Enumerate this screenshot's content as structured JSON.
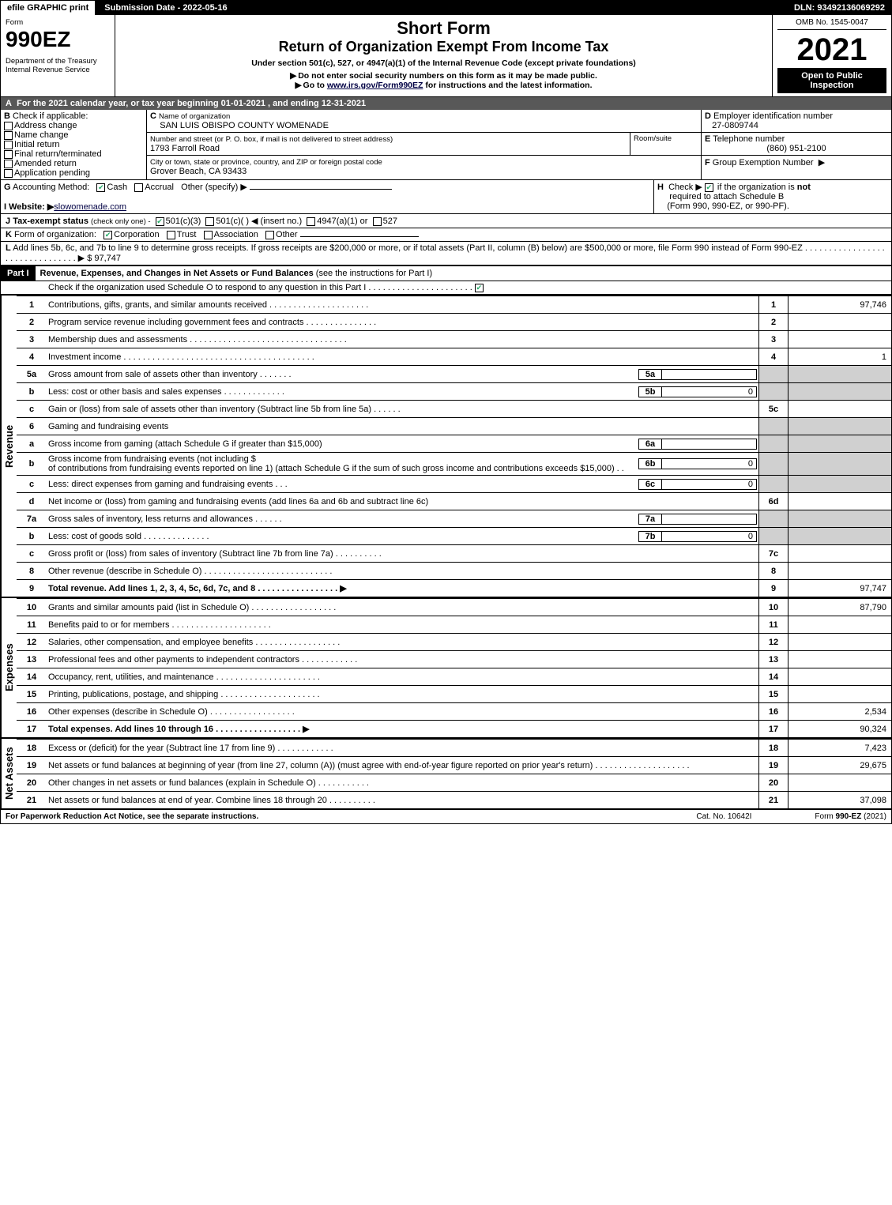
{
  "topbar": {
    "efile": "efile GRAPHIC print",
    "subdate": "Submission Date - 2022-05-16",
    "dln": "DLN: 93492136069292"
  },
  "header": {
    "form_label": "Form",
    "form_number": "990EZ",
    "dept": "Department of the Treasury",
    "irs": "Internal Revenue Service",
    "short": "Short Form",
    "title": "Return of Organization Exempt From Income Tax",
    "under": "Under section 501(c), 527, or 4947(a)(1) of the Internal Revenue Code (except private foundations)",
    "note1": "Do not enter social security numbers on this form as it may be made public.",
    "note2_a": "Go to ",
    "note2_link": "www.irs.gov/Form990EZ",
    "note2_b": " for instructions and the latest information.",
    "omb": "OMB No. 1545-0047",
    "year": "2021",
    "open": "Open to Public Inspection"
  },
  "A": "For the 2021 calendar year, or tax year beginning 01-01-2021 , and ending 12-31-2021",
  "B": {
    "title": "Check if applicable:",
    "opts": [
      "Address change",
      "Name change",
      "Initial return",
      "Final return/terminated",
      "Amended return",
      "Application pending"
    ]
  },
  "C": {
    "label": "Name of organization",
    "name": "SAN LUIS OBISPO COUNTY WOMENADE",
    "addr_label": "Number and street (or P. O. box, if mail is not delivered to street address)",
    "addr": "1793 Farroll Road",
    "room_label": "Room/suite",
    "city_label": "City or town, state or province, country, and ZIP or foreign postal code",
    "city": "Grover Beach, CA  93433"
  },
  "D": {
    "label": "Employer identification number",
    "val": "27-0809744"
  },
  "E": {
    "label": "Telephone number",
    "val": "(860) 951-2100"
  },
  "F": {
    "label": "Group Exemption Number",
    "arrow": "▶"
  },
  "G": {
    "label": "Accounting Method:",
    "cash": "Cash",
    "accrual": "Accrual",
    "other": "Other (specify) ▶"
  },
  "H": {
    "label": "Check ▶",
    "rest": "if the organization is ",
    "not": "not",
    "rest2": " required to attach Schedule B",
    "rest3": "(Form 990, 990-EZ, or 990-PF)."
  },
  "I": {
    "label": "Website: ▶",
    "val": "slowomenade.com"
  },
  "J": {
    "label": "Tax-exempt status",
    "hint": "(check only one) -",
    "o1": "501(c)(3)",
    "o2": "501(c)(  ) ◀ (insert no.)",
    "o3": "4947(a)(1) or",
    "o4": "527"
  },
  "K": {
    "label": "Form of organization:",
    "opts": [
      "Corporation",
      "Trust",
      "Association",
      "Other"
    ]
  },
  "L": {
    "text": "Add lines 5b, 6c, and 7b to line 9 to determine gross receipts. If gross receipts are $200,000 or more, or if total assets (Part II, column (B) below) are $500,000 or more, file Form 990 instead of Form 990-EZ  . . . . . . . . . . . . . . . . . . . . . . . . . . . . . . . . ▶",
    "val": "$ 97,747"
  },
  "part1": {
    "num": "Part I",
    "title": "Revenue, Expenses, and Changes in Net Assets or Fund Balances",
    "hint": "(see the instructions for Part I)",
    "checknote": "Check if the organization used Schedule O to respond to any question in this Part I . . . . . . . . . . . . . . . . . . . . . ."
  },
  "rev_label": "Revenue",
  "exp_label": "Expenses",
  "na_label": "Net Assets",
  "lines": {
    "1": {
      "n": "1",
      "d": "Contributions, gifts, grants, and similar amounts received . . . . . . . . . . . . . . . . . . . . .",
      "v": "97,746"
    },
    "2": {
      "n": "2",
      "d": "Program service revenue including government fees and contracts . . . . . . . . . . . . . . .",
      "v": ""
    },
    "3": {
      "n": "3",
      "d": "Membership dues and assessments . . . . . . . . . . . . . . . . . . . . . . . . . . . . . . . . .",
      "v": ""
    },
    "4": {
      "n": "4",
      "d": "Investment income . . . . . . . . . . . . . . . . . . . . . . . . . . . . . . . . . . . . . . . .",
      "v": "1"
    },
    "5a": {
      "n": "5a",
      "d": "Gross amount from sale of assets other than inventory . . . . . . .",
      "sub": "5a",
      "sv": ""
    },
    "5b": {
      "n": "b",
      "d": "Less: cost or other basis and sales expenses . . . . . . . . . . . . .",
      "sub": "5b",
      "sv": "0"
    },
    "5c": {
      "n": "c",
      "d": "Gain or (loss) from sale of assets other than inventory (Subtract line 5b from line 5a) . . . . . .",
      "box": "5c",
      "v": ""
    },
    "6": {
      "n": "6",
      "d": "Gaming and fundraising events"
    },
    "6a": {
      "n": "a",
      "d": "Gross income from gaming (attach Schedule G if greater than $15,000)",
      "sub": "6a",
      "sv": ""
    },
    "6b": {
      "n": "b",
      "d": "Gross income from fundraising events (not including $",
      "d2": "of contributions from fundraising events reported on line 1) (attach Schedule G if the sum of such gross income and contributions exceeds $15,000)    .  .",
      "sub": "6b",
      "sv": "0"
    },
    "6c": {
      "n": "c",
      "d": "Less: direct expenses from gaming and fundraising events   .  .  .",
      "sub": "6c",
      "sv": "0"
    },
    "6d": {
      "n": "d",
      "d": "Net income or (loss) from gaming and fundraising events (add lines 6a and 6b and subtract line 6c)",
      "box": "6d",
      "v": ""
    },
    "7a": {
      "n": "7a",
      "d": "Gross sales of inventory, less returns and allowances . . . . . .",
      "sub": "7a",
      "sv": ""
    },
    "7b": {
      "n": "b",
      "d": "Less: cost of goods sold        .   .   .   .   .   .   .   .   .   .   .   .   .   .",
      "sub": "7b",
      "sv": "0"
    },
    "7c": {
      "n": "c",
      "d": "Gross profit or (loss) from sales of inventory (Subtract line 7b from line 7a) . . . . . . . . . .",
      "box": "7c",
      "v": ""
    },
    "8": {
      "n": "8",
      "d": "Other revenue (describe in Schedule O) . . . . . . . . . . . . . . . . . . . . . . . . . . .",
      "v": ""
    },
    "9": {
      "n": "9",
      "d": "Total revenue. Add lines 1, 2, 3, 4, 5c, 6d, 7c, and 8  .  .  .  .  .  .  .  .  .  .  .  .  .  .  .  .  . ▶",
      "v": "97,747",
      "bold": true
    },
    "10": {
      "n": "10",
      "d": "Grants and similar amounts paid (list in Schedule O) .  .  .  .  .  .  .  .  .  .  .  .  .  .  .  .  .  .",
      "v": "87,790"
    },
    "11": {
      "n": "11",
      "d": "Benefits paid to or for members       .   .   .   .   .   .   .   .   .   .   .   .   .   .   .   .   .   .   .   .   .",
      "v": ""
    },
    "12": {
      "n": "12",
      "d": "Salaries, other compensation, and employee benefits .  .  .  .  .  .  .  .  .  .  .  .  .  .  .  .  .  .",
      "v": ""
    },
    "13": {
      "n": "13",
      "d": "Professional fees and other payments to independent contractors .  .  .  .  .  .  .  .  .  .  .  .",
      "v": ""
    },
    "14": {
      "n": "14",
      "d": "Occupancy, rent, utilities, and maintenance .  .  .  .  .  .  .  .  .  .  .  .  .  .  .  .  .  .  .  .  .  .",
      "v": ""
    },
    "15": {
      "n": "15",
      "d": "Printing, publications, postage, and shipping .  .  .  .  .  .  .  .  .  .  .  .  .  .  .  .  .  .  .  .  .",
      "v": ""
    },
    "16": {
      "n": "16",
      "d": "Other expenses (describe in Schedule O)       .   .   .   .   .   .   .   .   .   .   .   .   .   .   .   .   .   .",
      "v": "2,534"
    },
    "17": {
      "n": "17",
      "d": "Total expenses. Add lines 10 through 16       .   .   .   .   .   .   .   .   .   .   .   .   .   .   .   .   .   . ▶",
      "v": "90,324",
      "bold": true
    },
    "18": {
      "n": "18",
      "d": "Excess or (deficit) for the year (Subtract line 17 from line 9)        .   .   .   .   .   .   .   .   .   .   .   .",
      "v": "7,423"
    },
    "19": {
      "n": "19",
      "d": "Net assets or fund balances at beginning of year (from line 27, column (A)) (must agree with end-of-year figure reported on prior year's return) .  .  .  .  .  .  .  .  .  .  .  .  .  .  .  .  .  .  .  .",
      "v": "29,675"
    },
    "20": {
      "n": "20",
      "d": "Other changes in net assets or fund balances (explain in Schedule O) .  .  .  .  .  .  .  .  .  .  .",
      "v": ""
    },
    "21": {
      "n": "21",
      "d": "Net assets or fund balances at end of year. Combine lines 18 through 20 .  .  .  .  .  .  .  .  .  .",
      "v": "37,098"
    }
  },
  "footer": {
    "left": "For Paperwork Reduction Act Notice, see the separate instructions.",
    "mid": "Cat. No. 10642I",
    "right_a": "Form ",
    "right_b": "990-EZ",
    "right_c": " (2021)"
  }
}
